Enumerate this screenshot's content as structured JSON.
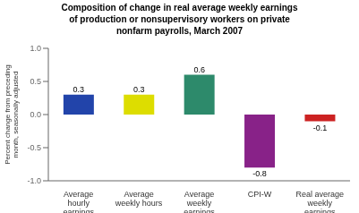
{
  "chart_data": {
    "type": "bar",
    "title": "Composition of change in real average weekly earnings\nof production or nonsupervisory workers on private\nnonfarm payrolls, March  2007",
    "categories": [
      "Average\nhourly\nearnings",
      "Average\nweekly hours",
      "Average\nweekly\nearnings",
      "CPI-W",
      "Real average\nweekly\nearnings"
    ],
    "values": [
      0.3,
      0.3,
      0.6,
      -0.8,
      -0.1
    ],
    "colors": [
      "#2244aa",
      "#dddd00",
      "#2d8a6b",
      "#882288",
      "#cc2222"
    ],
    "ylabel": "Percent change from preceding\nmonth, seasonally adjusted",
    "ylim": [
      -1.0,
      1.0
    ],
    "yticks": [
      {
        "value": -1.0,
        "label": "-1.0"
      },
      {
        "value": -0.5,
        "label": "-0.5"
      },
      {
        "value": 0.0,
        "label": "0.0"
      },
      {
        "value": 0.5,
        "label": "0.5"
      },
      {
        "value": 1.0,
        "label": "1.0"
      }
    ],
    "grid": false,
    "data_labels": true
  }
}
